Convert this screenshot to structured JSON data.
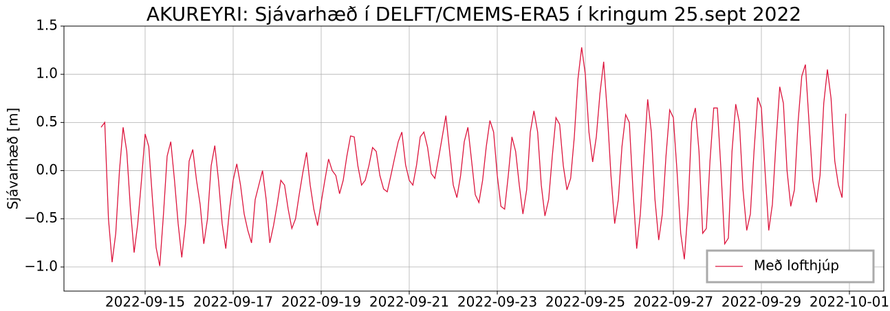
{
  "chart_data": {
    "type": "line",
    "title": "AKUREYRI: Sjávarhæð í DELFT/CMEMS-ERA5 í kringum 25.sept 2022",
    "ylabel": "Sjávarhæð [m]",
    "x": [
      "2022-09-14 00:00",
      "2022-09-14 02:00",
      "2022-09-14 04:00",
      "2022-09-14 06:00",
      "2022-09-14 08:00",
      "2022-09-14 10:00",
      "2022-09-14 12:00",
      "2022-09-14 14:00",
      "2022-09-14 16:00",
      "2022-09-14 18:00",
      "2022-09-14 20:00",
      "2022-09-14 22:00",
      "2022-09-15 00:00",
      "2022-09-15 02:00",
      "2022-09-15 04:00",
      "2022-09-15 06:00",
      "2022-09-15 08:00",
      "2022-09-15 10:00",
      "2022-09-15 12:00",
      "2022-09-15 14:00",
      "2022-09-15 16:00",
      "2022-09-15 18:00",
      "2022-09-15 20:00",
      "2022-09-15 22:00",
      "2022-09-16 00:00",
      "2022-09-16 02:00",
      "2022-09-16 04:00",
      "2022-09-16 06:00",
      "2022-09-16 08:00",
      "2022-09-16 10:00",
      "2022-09-16 12:00",
      "2022-09-16 14:00",
      "2022-09-16 16:00",
      "2022-09-16 18:00",
      "2022-09-16 20:00",
      "2022-09-16 22:00",
      "2022-09-17 00:00",
      "2022-09-17 02:00",
      "2022-09-17 04:00",
      "2022-09-17 06:00",
      "2022-09-17 08:00",
      "2022-09-17 10:00",
      "2022-09-17 12:00",
      "2022-09-17 14:00",
      "2022-09-17 16:00",
      "2022-09-17 18:00",
      "2022-09-17 20:00",
      "2022-09-17 22:00",
      "2022-09-18 00:00",
      "2022-09-18 02:00",
      "2022-09-18 04:00",
      "2022-09-18 06:00",
      "2022-09-18 08:00",
      "2022-09-18 10:00",
      "2022-09-18 12:00",
      "2022-09-18 14:00",
      "2022-09-18 16:00",
      "2022-09-18 18:00",
      "2022-09-18 20:00",
      "2022-09-18 22:00",
      "2022-09-19 00:00",
      "2022-09-19 02:00",
      "2022-09-19 04:00",
      "2022-09-19 06:00",
      "2022-09-19 08:00",
      "2022-09-19 10:00",
      "2022-09-19 12:00",
      "2022-09-19 14:00",
      "2022-09-19 16:00",
      "2022-09-19 18:00",
      "2022-09-19 20:00",
      "2022-09-19 22:00",
      "2022-09-20 00:00",
      "2022-09-20 02:00",
      "2022-09-20 04:00",
      "2022-09-20 06:00",
      "2022-09-20 08:00",
      "2022-09-20 10:00",
      "2022-09-20 12:00",
      "2022-09-20 14:00",
      "2022-09-20 16:00",
      "2022-09-20 18:00",
      "2022-09-20 20:00",
      "2022-09-20 22:00",
      "2022-09-21 00:00",
      "2022-09-21 02:00",
      "2022-09-21 04:00",
      "2022-09-21 06:00",
      "2022-09-21 08:00",
      "2022-09-21 10:00",
      "2022-09-21 12:00",
      "2022-09-21 14:00",
      "2022-09-21 16:00",
      "2022-09-21 18:00",
      "2022-09-21 20:00",
      "2022-09-21 22:00",
      "2022-09-22 00:00",
      "2022-09-22 02:00",
      "2022-09-22 04:00",
      "2022-09-22 06:00",
      "2022-09-22 08:00",
      "2022-09-22 10:00",
      "2022-09-22 12:00",
      "2022-09-22 14:00",
      "2022-09-22 16:00",
      "2022-09-22 18:00",
      "2022-09-22 20:00",
      "2022-09-22 22:00",
      "2022-09-23 00:00",
      "2022-09-23 02:00",
      "2022-09-23 04:00",
      "2022-09-23 06:00",
      "2022-09-23 08:00",
      "2022-09-23 10:00",
      "2022-09-23 12:00",
      "2022-09-23 14:00",
      "2022-09-23 16:00",
      "2022-09-23 18:00",
      "2022-09-23 20:00",
      "2022-09-23 22:00",
      "2022-09-24 00:00",
      "2022-09-24 02:00",
      "2022-09-24 04:00",
      "2022-09-24 06:00",
      "2022-09-24 08:00",
      "2022-09-24 10:00",
      "2022-09-24 12:00",
      "2022-09-24 14:00",
      "2022-09-24 16:00",
      "2022-09-24 18:00",
      "2022-09-24 20:00",
      "2022-09-24 22:00",
      "2022-09-25 00:00",
      "2022-09-25 02:00",
      "2022-09-25 04:00",
      "2022-09-25 06:00",
      "2022-09-25 08:00",
      "2022-09-25 10:00",
      "2022-09-25 12:00",
      "2022-09-25 14:00",
      "2022-09-25 16:00",
      "2022-09-25 18:00",
      "2022-09-25 20:00",
      "2022-09-25 22:00",
      "2022-09-26 00:00",
      "2022-09-26 02:00",
      "2022-09-26 04:00",
      "2022-09-26 06:00",
      "2022-09-26 08:00",
      "2022-09-26 10:00",
      "2022-09-26 12:00",
      "2022-09-26 14:00",
      "2022-09-26 16:00",
      "2022-09-26 18:00",
      "2022-09-26 20:00",
      "2022-09-26 22:00",
      "2022-09-27 00:00",
      "2022-09-27 02:00",
      "2022-09-27 04:00",
      "2022-09-27 06:00",
      "2022-09-27 08:00",
      "2022-09-27 10:00",
      "2022-09-27 12:00",
      "2022-09-27 14:00",
      "2022-09-27 16:00",
      "2022-09-27 18:00",
      "2022-09-27 20:00",
      "2022-09-27 22:00",
      "2022-09-28 00:00",
      "2022-09-28 02:00",
      "2022-09-28 04:00",
      "2022-09-28 06:00",
      "2022-09-28 08:00",
      "2022-09-28 10:00",
      "2022-09-28 12:00",
      "2022-09-28 14:00",
      "2022-09-28 16:00",
      "2022-09-28 18:00",
      "2022-09-28 20:00",
      "2022-09-28 22:00",
      "2022-09-29 00:00",
      "2022-09-29 02:00",
      "2022-09-29 04:00",
      "2022-09-29 06:00",
      "2022-09-29 08:00",
      "2022-09-29 10:00",
      "2022-09-29 12:00",
      "2022-09-29 14:00",
      "2022-09-29 16:00",
      "2022-09-29 18:00",
      "2022-09-29 20:00",
      "2022-09-29 22:00",
      "2022-09-30 00:00",
      "2022-09-30 02:00",
      "2022-09-30 04:00",
      "2022-09-30 06:00",
      "2022-09-30 08:00",
      "2022-09-30 10:00",
      "2022-09-30 12:00",
      "2022-09-30 14:00",
      "2022-09-30 16:00",
      "2022-09-30 18:00",
      "2022-09-30 20:00",
      "2022-09-30 22:00"
    ],
    "series": [
      {
        "name": "Með lofthjúp",
        "color": "#dc143c",
        "values": [
          0.45,
          0.5,
          -0.5,
          -0.95,
          -0.65,
          0.0,
          0.45,
          0.2,
          -0.4,
          -0.85,
          -0.55,
          -0.1,
          0.38,
          0.25,
          -0.3,
          -0.8,
          -0.99,
          -0.45,
          0.15,
          0.3,
          -0.1,
          -0.55,
          -0.9,
          -0.55,
          0.1,
          0.22,
          -0.1,
          -0.35,
          -0.76,
          -0.5,
          0.05,
          0.26,
          -0.1,
          -0.55,
          -0.81,
          -0.4,
          -0.1,
          0.07,
          -0.15,
          -0.45,
          -0.62,
          -0.75,
          -0.3,
          -0.15,
          0.0,
          -0.3,
          -0.75,
          -0.57,
          -0.35,
          -0.1,
          -0.15,
          -0.4,
          -0.6,
          -0.5,
          -0.25,
          -0.02,
          0.19,
          -0.15,
          -0.4,
          -0.57,
          -0.33,
          -0.1,
          0.12,
          0.0,
          -0.05,
          -0.24,
          -0.1,
          0.15,
          0.36,
          0.35,
          0.05,
          -0.15,
          -0.1,
          0.05,
          0.24,
          0.2,
          -0.05,
          -0.19,
          -0.22,
          -0.05,
          0.13,
          0.3,
          0.4,
          0.06,
          -0.1,
          -0.15,
          0.06,
          0.35,
          0.4,
          0.24,
          -0.03,
          -0.08,
          0.13,
          0.35,
          0.57,
          0.2,
          -0.15,
          -0.28,
          -0.05,
          0.3,
          0.45,
          0.1,
          -0.25,
          -0.33,
          -0.1,
          0.25,
          0.52,
          0.4,
          -0.05,
          -0.37,
          -0.4,
          -0.05,
          0.35,
          0.2,
          -0.15,
          -0.45,
          -0.2,
          0.4,
          0.62,
          0.4,
          -0.15,
          -0.47,
          -0.3,
          0.15,
          0.55,
          0.48,
          0.05,
          -0.2,
          -0.08,
          0.35,
          0.95,
          1.28,
          1.0,
          0.4,
          0.09,
          0.35,
          0.8,
          1.13,
          0.6,
          -0.05,
          -0.55,
          -0.3,
          0.25,
          0.58,
          0.5,
          -0.2,
          -0.81,
          -0.45,
          0.15,
          0.74,
          0.4,
          -0.3,
          -0.72,
          -0.45,
          0.15,
          0.63,
          0.55,
          0.0,
          -0.65,
          -0.92,
          -0.4,
          0.5,
          0.65,
          0.2,
          -0.65,
          -0.6,
          0.1,
          0.65,
          0.65,
          0.0,
          -0.76,
          -0.7,
          0.2,
          0.69,
          0.5,
          -0.2,
          -0.62,
          -0.45,
          0.2,
          0.76,
          0.65,
          0.0,
          -0.62,
          -0.35,
          0.3,
          0.87,
          0.7,
          0.0,
          -0.37,
          -0.2,
          0.5,
          0.98,
          1.1,
          0.5,
          -0.1,
          -0.33,
          -0.05,
          0.7,
          1.05,
          0.75,
          0.1,
          -0.15,
          -0.28,
          0.59
        ]
      }
    ],
    "xlim": [
      "2022-09-13 03:45",
      "2022-10-01 18:45"
    ],
    "xticks": [
      "2022-09-15",
      "2022-09-17",
      "2022-09-19",
      "2022-09-21",
      "2022-09-23",
      "2022-09-25",
      "2022-09-27",
      "2022-09-29",
      "2022-10-01"
    ],
    "ylim": [
      -1.25,
      1.5
    ],
    "yticks": [
      {
        "value": -1.0,
        "label": "−1.0"
      },
      {
        "value": -0.5,
        "label": "−0.5"
      },
      {
        "value": 0.0,
        "label": "0.0"
      },
      0.5,
      {
        "value": 1.0,
        "label": "1.0"
      },
      1.5
    ],
    "grid": true,
    "legend": "lower right"
  }
}
